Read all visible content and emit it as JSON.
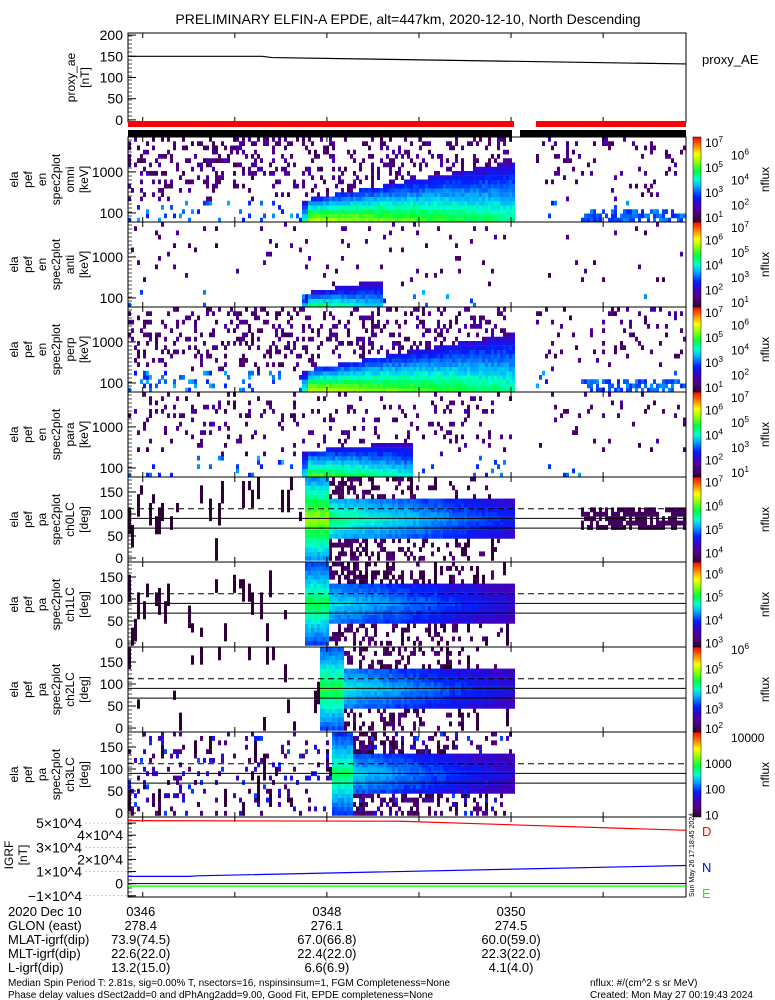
{
  "chart_data": {
    "type": "heatmap",
    "title": "PRELIMINARY ELFIN-A EPDE, alt=447km, 2020-12-10, North Descending",
    "time_range_minutes_after_0300": [
      45.84,
      51.9
    ],
    "time_ticks": [
      {
        "minute": 46,
        "label": "0346"
      },
      {
        "minute": 48,
        "label": "0348"
      },
      {
        "minute": 50,
        "label": "0350"
      }
    ],
    "proxy_ae": {
      "ylabel": [
        "proxy_ae",
        "[nT]"
      ],
      "legend": "proxy_AE",
      "ylim": [
        -5,
        205
      ],
      "yticks": [
        "0",
        "50",
        "100",
        "150",
        "200"
      ],
      "series": {
        "x_minutes": [
          45.84,
          47.3,
          47.4,
          51.9
        ],
        "y": [
          150,
          150,
          147,
          132
        ]
      }
    },
    "energy_panels": [
      {
        "ylabel": [
          "ela",
          "pef",
          "en",
          "spec2plot",
          "omni",
          "[keV]"
        ],
        "yticks": [
          "100",
          "1000"
        ],
        "ylog_range": [
          1.78,
          3.85
        ],
        "colorbar": {
          "label": "nflux",
          "exp_range": [
            0.6,
            7.4
          ],
          "ticks": [
            "10^7",
            "10^6",
            "10^5",
            "10^4",
            "10^3",
            "10^2",
            "10^1"
          ]
        }
      },
      {
        "ylabel": [
          "ela",
          "pef",
          "en",
          "spec2plot",
          "anti",
          "[keV]"
        ],
        "yticks": [
          "100",
          "1000"
        ],
        "ylog_range": [
          1.78,
          3.85
        ],
        "colorbar": {
          "label": "nflux",
          "exp_range": [
            0.6,
            7.4
          ],
          "ticks": [
            "10^7",
            "10^6",
            "10^5",
            "10^4",
            "10^3",
            "10^2",
            "10^1"
          ]
        }
      },
      {
        "ylabel": [
          "ela",
          "pef",
          "en",
          "spec2plot",
          "perp",
          "[keV]"
        ],
        "yticks": [
          "100",
          "1000"
        ],
        "ylog_range": [
          1.78,
          3.85
        ],
        "colorbar": {
          "label": "nflux",
          "exp_range": [
            0.6,
            7.4
          ],
          "ticks": [
            "10^7",
            "10^6",
            "10^5",
            "10^4",
            "10^3",
            "10^2",
            "10^1"
          ]
        }
      },
      {
        "ylabel": [
          "ela",
          "pef",
          "en",
          "spec2plot",
          "para",
          "[keV]"
        ],
        "yticks": [
          "100",
          "1000"
        ],
        "ylog_range": [
          1.78,
          3.85
        ],
        "colorbar": {
          "label": "nflux",
          "exp_range": [
            0.6,
            7.4
          ],
          "ticks": [
            "10^7",
            "10^6",
            "10^5",
            "10^4",
            "10^3",
            "10^2",
            "10^1"
          ]
        }
      }
    ],
    "pa_panels": [
      {
        "ylabel": [
          "ela",
          "pef",
          "pa",
          "spec2plot",
          "ch0LC",
          "[deg]"
        ],
        "yticks": [
          "0",
          "50",
          "100",
          "150"
        ],
        "ylim": [
          -9,
          184
        ],
        "loss_cone_lines_deg": [
          68,
          90,
          112
        ],
        "colorbar": {
          "label": "nflux",
          "exp_range": [
            3.6,
            7.2
          ],
          "ticks": [
            "10^7",
            "10^6",
            "10^5",
            "10^4"
          ]
        }
      },
      {
        "ylabel": [
          "ela",
          "pef",
          "pa",
          "spec2plot",
          "ch1LC",
          "[deg]"
        ],
        "yticks": [
          "0",
          "50",
          "100",
          "150"
        ],
        "ylim": [
          -9,
          184
        ],
        "loss_cone_lines_deg": [
          68,
          90,
          112
        ],
        "colorbar": {
          "label": "nflux",
          "exp_range": [
            2.8,
            6.5
          ],
          "ticks": [
            "10^6",
            "10^5",
            "10^4",
            "10^3"
          ]
        }
      },
      {
        "ylabel": [
          "ela",
          "pef",
          "pa",
          "spec2plot",
          "ch2LC",
          "[deg]"
        ],
        "yticks": [
          "0",
          "50",
          "100",
          "150"
        ],
        "ylim": [
          -9,
          184
        ],
        "loss_cone_lines_deg": [
          68,
          90,
          112
        ],
        "colorbar": {
          "label": "nflux",
          "exp_range": [
            1.8,
            6.1
          ],
          "ticks": [
            "10^6",
            "10^5",
            "10^4",
            "10^3",
            "10^2"
          ]
        }
      },
      {
        "ylabel": [
          "ela",
          "pef",
          "pa",
          "spec2plot",
          "ch3LC",
          "[deg]"
        ],
        "yticks": [
          "0",
          "50",
          "100",
          "150"
        ],
        "ylim": [
          -9,
          184
        ],
        "loss_cone_lines_deg": [
          68,
          90,
          112
        ],
        "colorbar": {
          "label": "nflux",
          "exp_range": [
            0.9,
            4.2
          ],
          "ticks": [
            "10000",
            "1000",
            "100",
            "10"
          ]
        }
      }
    ],
    "igrf": {
      "ylabel": [
        "IGRF",
        "[nT]"
      ],
      "ylim": [
        -11000,
        55000
      ],
      "yticks": [
        {
          "v": 50000,
          "label": "5×10^4"
        },
        {
          "v": 40000,
          "label": "4×10^4"
        },
        {
          "v": 30000,
          "label": "3×10^4"
        },
        {
          "v": 20000,
          "label": "2×10^4"
        },
        {
          "v": 10000,
          "label": "1×10^4"
        },
        {
          "v": 0,
          "label": "0"
        },
        {
          "v": -10000,
          "label": "−1×10^4"
        }
      ],
      "series": [
        {
          "name": "D",
          "color": "#ff0000",
          "x_minutes": [
            45.84,
            48.8,
            51.9
          ],
          "y": [
            52000,
            51500,
            44000
          ]
        },
        {
          "name": "N",
          "color": "#0000ff",
          "x_minutes": [
            45.84,
            46.5,
            46.6,
            51.9
          ],
          "y": [
            6000,
            6000,
            6500,
            15000
          ]
        },
        {
          "name": "E",
          "color": "#00ff00",
          "x_minutes": [
            45.84,
            51.9
          ],
          "y": [
            -2000,
            -2000
          ]
        }
      ]
    },
    "side_stamp": "Sun May 26 17:18:45 2024",
    "colors": {
      "sci_zone_bar": "#ff0000",
      "accent": "#000000"
    }
  },
  "footer": {
    "rows": [
      {
        "label": "2020 Dec 10",
        "values": [
          "0346",
          "0348",
          "0350"
        ]
      },
      {
        "label": "GLON (east)",
        "values": [
          "278.4",
          "276.1",
          "274.5"
        ]
      },
      {
        "label": "MLAT-igrf(dip)",
        "values": [
          "73.9(74.5)",
          "67.0(66.8)",
          "60.0(59.0)"
        ]
      },
      {
        "label": "MLT-igrf(dip)",
        "values": [
          "22.6(22.0)",
          "22.4(22.0)",
          "22.3(22.0)"
        ]
      },
      {
        "label": "L-igrf(dip)",
        "values": [
          "13.2(15.0)",
          "6.6(6.9)",
          "4.1(4.0)"
        ]
      }
    ],
    "note1": "Median Spin Period T: 2.81s, sig=0.00% T, nsectors=16, nspinsinsum=1, FGM Completeness=None",
    "note2": "Phase delay values dSect2add=0 and dPhAng2add=9.00, Good Fit, EPDE completeness=None",
    "units": "nflux: #/(cm^2 s sr MeV)",
    "created": "Created: Mon May 27 00:19:43 2024"
  }
}
